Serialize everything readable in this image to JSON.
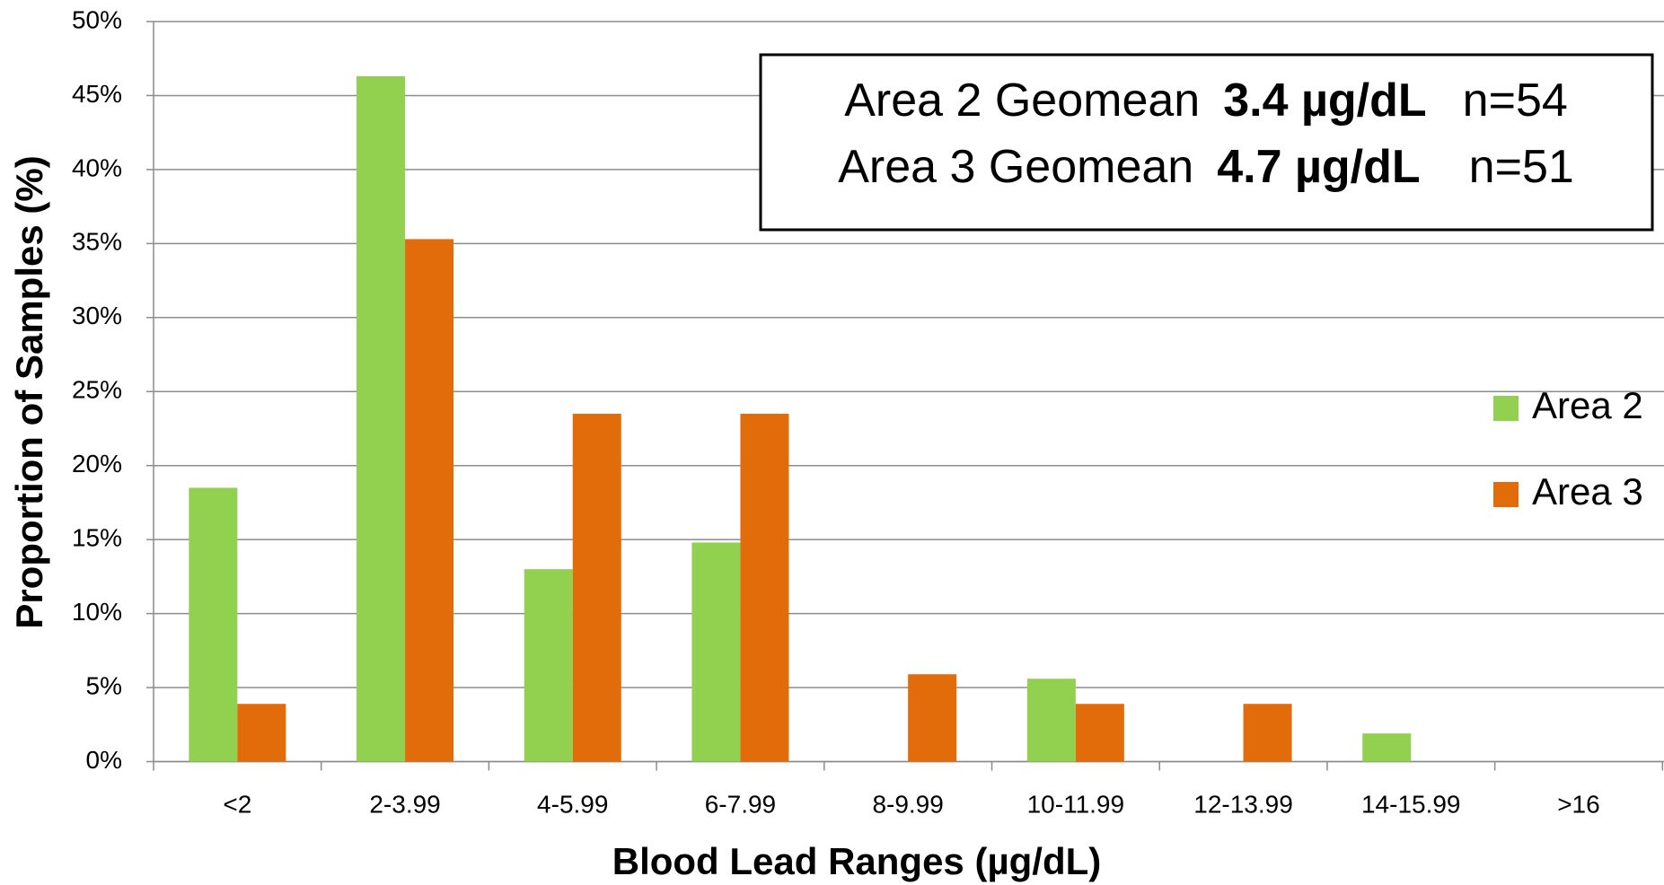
{
  "chart_data": {
    "type": "bar",
    "x_label": "Blood Lead Ranges (µg/dL)",
    "y_label": "Proportion of Samples (%)",
    "categories": [
      "<2",
      "2-3.99",
      "4-5.99",
      "6-7.99",
      "8-9.99",
      "10-11.99",
      "12-13.99",
      "14-15.99",
      ">16"
    ],
    "series": [
      {
        "name": "Area 2",
        "color": "#92d050",
        "values": [
          18.5,
          46.3,
          13.0,
          14.8,
          0,
          5.6,
          0,
          1.9,
          0
        ]
      },
      {
        "name": "Area 3",
        "color": "#e36c0a",
        "values": [
          3.9,
          35.3,
          23.5,
          23.5,
          5.9,
          3.9,
          3.9,
          0,
          0
        ]
      }
    ],
    "ylim": [
      0,
      50
    ],
    "yticks": [
      {
        "value": 0,
        "label": "0%"
      },
      {
        "value": 5,
        "label": "5%"
      },
      {
        "value": 10,
        "label": "10%"
      },
      {
        "value": 15,
        "label": "15%"
      },
      {
        "value": 20,
        "label": "20%"
      },
      {
        "value": 25,
        "label": "25%"
      },
      {
        "value": 30,
        "label": "30%"
      },
      {
        "value": 35,
        "label": "35%"
      },
      {
        "value": 40,
        "label": "40%"
      },
      {
        "value": 45,
        "label": "45%"
      },
      {
        "value": 50,
        "label": "50%"
      }
    ],
    "grid": true,
    "legend": "right",
    "annotations": [
      {
        "label": "Area 2 Geomean",
        "value": "3.4 µg/dL",
        "n": "n=54"
      },
      {
        "label": "Area 3 Geomean",
        "value": "4.7 µg/dL",
        "n": "n=51"
      }
    ]
  }
}
